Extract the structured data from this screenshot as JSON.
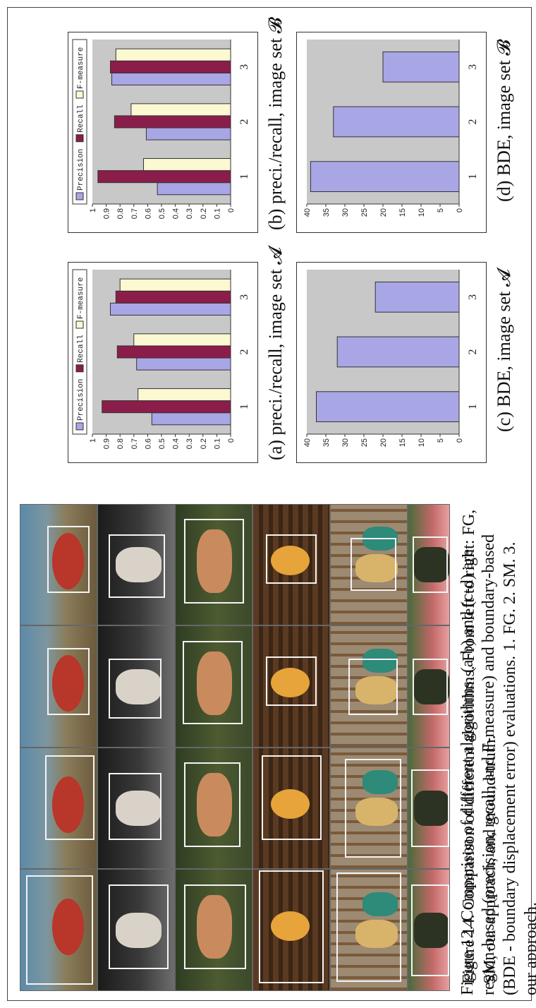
{
  "figure14": {
    "caption": "Figure 14. Comparison of different algorithms.  From left to right: FG, SM, our approach, and ground-truth."
  },
  "figure12": {
    "caption": "Figure 12. Comparison of different algorithms.  (a-b) and (c-d) are region-based (precision, recall, and F-measure) and boundary-based (BDE - boundary displacement error) evaluations. 1. FG. 2. SM. 3. our approach."
  },
  "subcaptions": {
    "a": "(a) preci./recall, image set 𝓐",
    "b": "(b) preci./recall, image set 𝓑",
    "c": "(c) BDE, image set 𝓐",
    "d": "(d) BDE, image set 𝓑"
  },
  "colors": {
    "precision": "#a9a6e6",
    "recall": "#8b1d4a",
    "fmeasure": "#fbf8d2",
    "plot_bg": "#c8c8c8"
  },
  "chart_data": [
    {
      "type": "bar",
      "categories": [
        "1",
        "2",
        "3"
      ],
      "series": [
        {
          "name": "Precision",
          "values": [
            0.57,
            0.68,
            0.87
          ]
        },
        {
          "name": "Recall",
          "values": [
            0.93,
            0.82,
            0.83
          ]
        },
        {
          "name": "F-measure",
          "values": [
            0.67,
            0.7,
            0.8
          ]
        }
      ],
      "ylim": [
        0,
        1
      ],
      "yticks": [
        "0",
        "0.1",
        "0.2",
        "0.3",
        "0.4",
        "0.5",
        "0.6",
        "0.7",
        "0.8",
        "0.9",
        "1"
      ]
    },
    {
      "type": "bar",
      "categories": [
        "1",
        "2",
        "3"
      ],
      "series": [
        {
          "name": "Precision",
          "values": [
            0.53,
            0.61,
            0.86
          ]
        },
        {
          "name": "Recall",
          "values": [
            0.96,
            0.84,
            0.87
          ]
        },
        {
          "name": "F-measure",
          "values": [
            0.63,
            0.72,
            0.83
          ]
        }
      ],
      "ylim": [
        0,
        1
      ],
      "yticks": [
        "0",
        "0.1",
        "0.2",
        "0.3",
        "0.4",
        "0.5",
        "0.6",
        "0.7",
        "0.8",
        "0.9",
        "1"
      ]
    },
    {
      "type": "bar",
      "categories": [
        "1",
        "2",
        "3"
      ],
      "series": [
        {
          "values": [
            37.5,
            32,
            22
          ]
        }
      ],
      "ylim": [
        0,
        40
      ],
      "yticks": [
        "0",
        "5",
        "10",
        "15",
        "20",
        "25",
        "30",
        "35",
        "40"
      ]
    },
    {
      "type": "bar",
      "categories": [
        "1",
        "2",
        "3"
      ],
      "series": [
        {
          "values": [
            39,
            33,
            20
          ]
        }
      ],
      "ylim": [
        0,
        40
      ],
      "yticks": [
        "0",
        "5",
        "10",
        "15",
        "20",
        "25",
        "30",
        "35",
        "40"
      ]
    }
  ]
}
